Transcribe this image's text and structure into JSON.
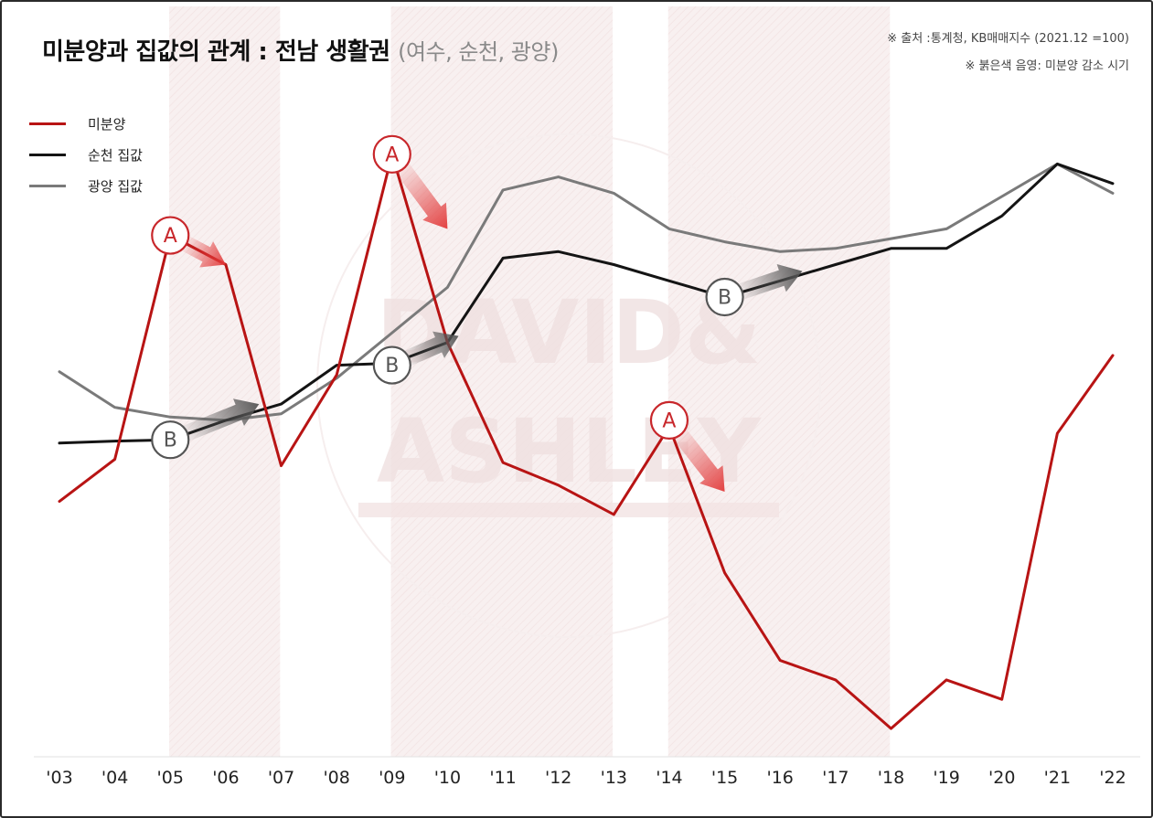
{
  "header": {
    "title": "미분양과 집값의 관계 : 전남 생활권",
    "subtitle": "(여수, 순천, 광양)",
    "source": "※ 출처 :통계청, KB매매지수 (2021.12 =100)",
    "note": "※ 붉은색 음영: 미분양 감소 시기"
  },
  "watermark": {
    "line1": "DAVID&",
    "line2": "ASHLEY"
  },
  "colors": {
    "unsold": "#b81414",
    "suncheon": "#141414",
    "gwangyang": "#7a7a7a",
    "shade": "#f6eaea",
    "marker_a": "#c8272b",
    "marker_b": "#555555"
  },
  "legend": [
    {
      "label": "미분양",
      "color": "#b81414"
    },
    {
      "label": "순천 집값",
      "color": "#141414"
    },
    {
      "label": "광양 집값",
      "color": "#7a7a7a"
    }
  ],
  "chart_data": {
    "type": "line",
    "title": "미분양과 집값의 관계 : 전남 생활권 (여수, 순천, 광양)",
    "xlabel": "",
    "ylabel": "",
    "categories": [
      "'03",
      "'04",
      "'05",
      "'06",
      "'07",
      "'08",
      "'09",
      "'10",
      "'11",
      "'12",
      "'13",
      "'14",
      "'15",
      "'16",
      "'17",
      "'18",
      "'19",
      "'20",
      "'21",
      "'22"
    ],
    "ylim": [
      0,
      100
    ],
    "series": [
      {
        "name": "미분양",
        "color": "#b81414",
        "values": [
          38.5,
          45.0,
          79.5,
          75.0,
          44.0,
          58.0,
          92.0,
          63.0,
          44.5,
          41.0,
          36.5,
          50.0,
          27.5,
          14.0,
          11.0,
          3.5,
          11.0,
          8.0,
          49.0,
          61.0
        ]
      },
      {
        "name": "순천 집값",
        "color": "#141414",
        "values": [
          47.5,
          47.8,
          48.0,
          51.0,
          53.5,
          59.5,
          59.8,
          63.0,
          76.0,
          77.0,
          75.0,
          72.5,
          70.0,
          72.5,
          75.0,
          77.5,
          77.5,
          82.5,
          90.5,
          87.5
        ]
      },
      {
        "name": "광양 집값",
        "color": "#7a7a7a",
        "values": [
          58.5,
          53.0,
          51.5,
          51.0,
          52.0,
          57.5,
          64.5,
          71.5,
          86.5,
          88.5,
          86.0,
          80.5,
          78.5,
          77.0,
          77.5,
          79.0,
          80.5,
          85.5,
          90.5,
          86.0
        ]
      }
    ],
    "shaded_periods": [
      {
        "from": "'05",
        "to": "'07",
        "meaning": "미분양 감소 시기"
      },
      {
        "from": "'09",
        "to": "'13",
        "meaning": "미분양 감소 시기"
      },
      {
        "from": "'14",
        "to": "'18",
        "meaning": "미분양 감소 시기"
      }
    ],
    "annotations": [
      {
        "label": "A",
        "kind": "unsold",
        "x": "'05",
        "y": 79.5,
        "arrow_to": "'06",
        "arrow_y": 75.0
      },
      {
        "label": "A",
        "kind": "unsold",
        "x": "'09",
        "y": 92.0,
        "arrow_to": "'10",
        "arrow_y": 80.5
      },
      {
        "label": "A",
        "kind": "unsold",
        "x": "'14",
        "y": 51.0,
        "arrow_to": "'15",
        "arrow_y": 40.0
      },
      {
        "label": "B",
        "kind": "price",
        "x": "'05",
        "y": 48.0,
        "arrow_to": "'06.6",
        "arrow_y": 53.5
      },
      {
        "label": "B",
        "kind": "price",
        "x": "'09",
        "y": 59.5,
        "arrow_to": "'10.2",
        "arrow_y": 64.0
      },
      {
        "label": "B",
        "kind": "price",
        "x": "'15",
        "y": 70.0,
        "arrow_to": "'16.4",
        "arrow_y": 74.0
      }
    ]
  }
}
